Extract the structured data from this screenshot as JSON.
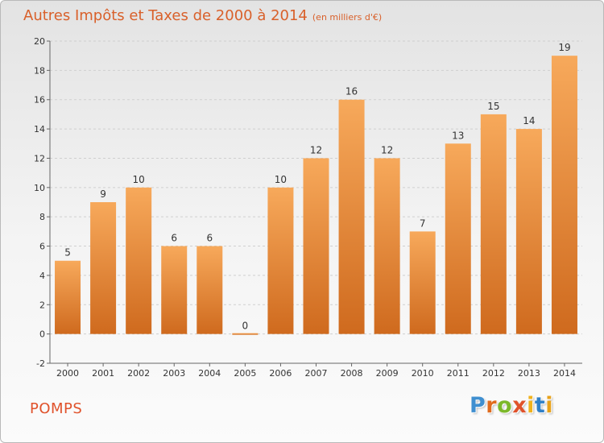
{
  "title": "Autres Impôts et Taxes de 2000 à 2014",
  "unit_note": "(en milliers d'€)",
  "place": "POMPS",
  "logo_text": "Proxiti",
  "colors": {
    "title": "#d9602a",
    "bar_top": "#f7a95b",
    "bar_bottom": "#cf6a1e",
    "place": "#e0522b",
    "logo_letters": [
      "#3f8fd0",
      "#e06b1e",
      "#7cb82a",
      "#e0522b",
      "#f0b21c",
      "#2f80c8",
      "#e8a21a"
    ]
  },
  "chart_data": {
    "type": "bar",
    "categories": [
      "2000",
      "2001",
      "2002",
      "2003",
      "2004",
      "2005",
      "2006",
      "2007",
      "2008",
      "2009",
      "2010",
      "2011",
      "2012",
      "2013",
      "2014"
    ],
    "values": [
      5,
      9,
      10,
      6,
      6,
      0,
      10,
      12,
      16,
      12,
      7,
      13,
      15,
      14,
      19
    ],
    "ylim": [
      -2,
      20
    ],
    "yticks": [
      -2,
      0,
      2,
      4,
      6,
      8,
      10,
      12,
      14,
      16,
      18,
      20
    ],
    "grid": true,
    "data_labels": true
  }
}
